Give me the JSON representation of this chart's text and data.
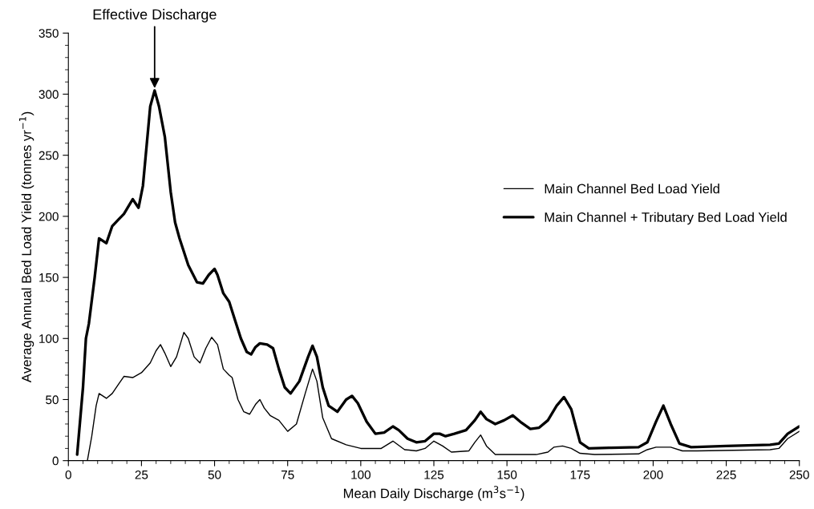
{
  "chart_data": {
    "type": "line",
    "xlabel": "Mean Daily Discharge (m$^{3}$s$^{−1}$)",
    "ylabel": "Average Annual Bed Load Yield (tonnes yr$^{−1}$)",
    "xlim": [
      0,
      250
    ],
    "xticks": [
      0,
      25,
      50,
      75,
      100,
      125,
      150,
      175,
      200,
      225,
      250
    ],
    "ylim": [
      0,
      350
    ],
    "yticks": [
      0,
      50,
      100,
      150,
      200,
      250,
      300,
      350
    ],
    "grid": false,
    "legend": "right",
    "marker": "none",
    "line_style": "solid",
    "annotations": [
      {
        "text": "Effective Discharge",
        "x": 29.5,
        "y": 303
      }
    ],
    "series": [
      {
        "name": "Main Channel Bed Load Yield",
        "color": "#000000",
        "x": [
          6.5,
          8,
          9.5,
          10.5,
          13,
          15,
          17,
          19,
          22,
          25,
          28,
          30,
          31.5,
          33,
          35,
          37,
          39.5,
          41,
          43,
          45,
          47,
          49,
          51,
          53,
          55,
          56,
          58,
          60,
          62,
          64,
          65.5,
          67,
          69,
          72,
          75,
          78,
          81,
          83.5,
          85,
          87,
          90,
          95,
          100,
          107,
          111,
          115,
          119,
          122,
          125,
          128,
          131,
          137,
          139,
          141,
          143,
          146,
          160,
          164,
          166,
          169,
          172,
          175,
          180,
          195,
          198,
          201,
          206,
          210,
          215,
          240,
          243,
          246,
          250
        ],
        "values": [
          0,
          20,
          45,
          55,
          51,
          55,
          62,
          69,
          68,
          72,
          80,
          90,
          95,
          88,
          77,
          85,
          105,
          100,
          85,
          80,
          92,
          101,
          95,
          75,
          70,
          68,
          50,
          40,
          38,
          46,
          50,
          43,
          37,
          33,
          24,
          30,
          55,
          75,
          65,
          35,
          18,
          13,
          10,
          10,
          16,
          9,
          8,
          10,
          16,
          12,
          7,
          8,
          15,
          21,
          12,
          5,
          5,
          7,
          11,
          12,
          10,
          6,
          5,
          5.5,
          9,
          11,
          11,
          8,
          8,
          9,
          10,
          18,
          24
        ]
      },
      {
        "name": "Main Channel + Tributary Bed Load Yield",
        "color": "#000000",
        "x": [
          3,
          5,
          6,
          7,
          9,
          10.5,
          13,
          15,
          17,
          19,
          22,
          24,
          25.5,
          28,
          29.5,
          31,
          33,
          35,
          36.5,
          38,
          41,
          44,
          46,
          48,
          50,
          51,
          53,
          55,
          57,
          59,
          61,
          62.5,
          64,
          65.5,
          68,
          70,
          72,
          74,
          76,
          79,
          82,
          83.5,
          85,
          87,
          89,
          92,
          95,
          97,
          99,
          102,
          105,
          108,
          111,
          113,
          116,
          119,
          122,
          125,
          127,
          129,
          132,
          136,
          139,
          141,
          143,
          146,
          149,
          152,
          155,
          158,
          161,
          164,
          167,
          169.5,
          172,
          175,
          178,
          185,
          195,
          198,
          201,
          203.5,
          206,
          209,
          213,
          225,
          240,
          243,
          246,
          250
        ],
        "values": [
          5,
          60,
          100,
          112,
          150,
          182,
          178,
          192,
          197,
          202,
          214,
          207,
          225,
          290,
          303,
          290,
          265,
          220,
          195,
          182,
          160,
          146,
          145,
          152,
          157,
          152,
          137,
          130,
          115,
          100,
          89,
          87,
          93,
          96,
          95,
          92,
          75,
          60,
          55,
          65,
          85,
          94,
          85,
          60,
          45,
          40,
          50,
          53,
          47,
          32,
          22,
          23,
          28,
          25,
          18,
          15,
          16,
          22,
          22,
          20,
          22,
          25,
          33,
          40,
          34,
          30,
          33,
          37,
          31,
          26,
          27,
          33,
          45,
          52,
          42,
          15,
          10,
          10.5,
          11,
          15,
          32,
          45,
          30,
          14,
          11,
          12,
          13,
          14,
          22,
          28
        ]
      }
    ]
  }
}
